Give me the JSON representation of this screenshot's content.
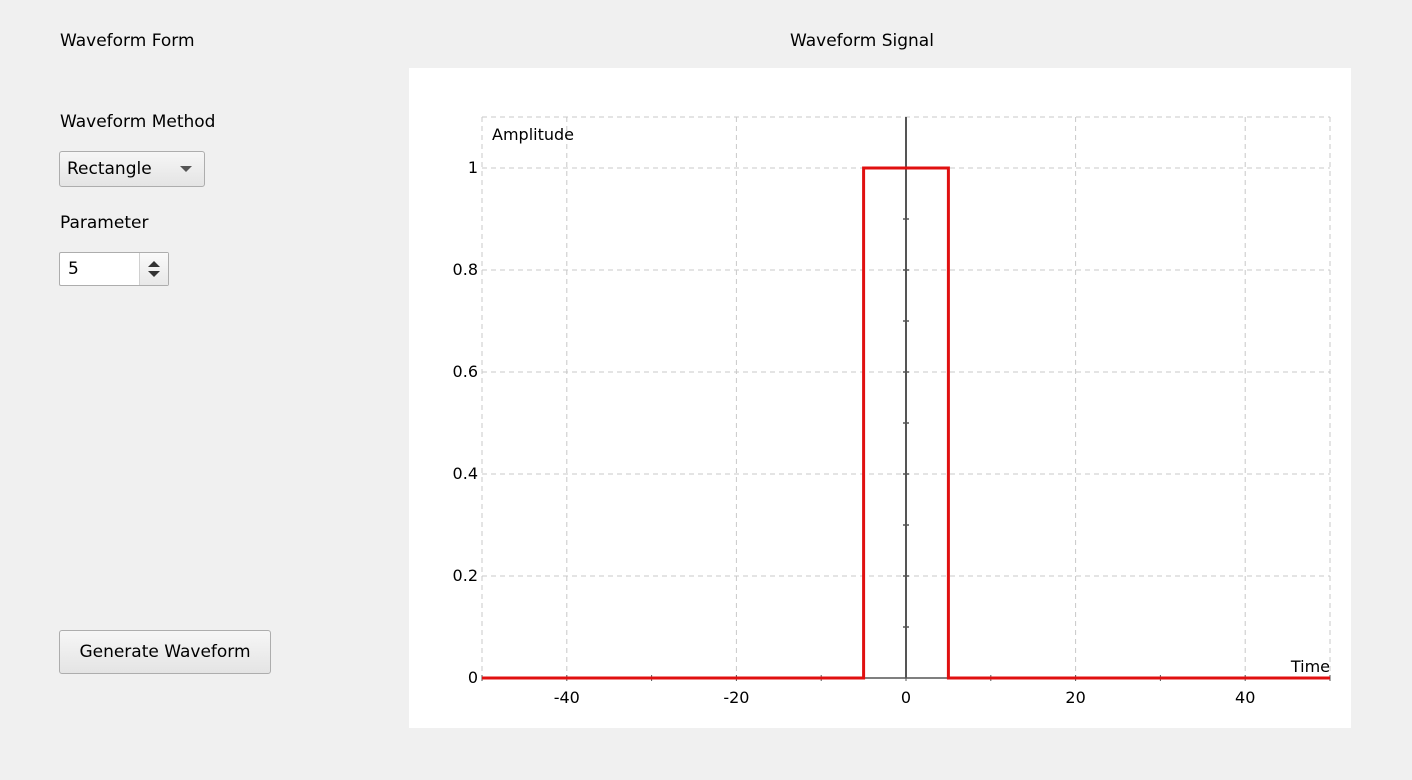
{
  "form": {
    "title": "Waveform Form",
    "method_label": "Waveform Method",
    "method_value": "Rectangle",
    "parameter_label": "Parameter",
    "parameter_value": "5",
    "generate_label": "Generate Waveform"
  },
  "chart_title": "Waveform Signal",
  "colors": {
    "series": "#e01010",
    "grid": "#c8c8c8",
    "axis": "#555555",
    "panel": "#ffffff",
    "background": "#f0f0f0"
  },
  "chart_data": {
    "type": "line",
    "title": "Waveform Signal",
    "xlabel": "Time",
    "ylabel": "Amplitude",
    "xlim": [
      -50,
      50
    ],
    "ylim": [
      0,
      1.1
    ],
    "x_ticks": [
      -40,
      -20,
      0,
      20,
      40
    ],
    "y_ticks": [
      0,
      0.2,
      0.4,
      0.6,
      0.8,
      1
    ],
    "grid": true,
    "series": [
      {
        "x": [
          -50,
          -5,
          -5,
          5,
          5,
          50
        ],
        "y": [
          0,
          0,
          1,
          1,
          0,
          0
        ]
      }
    ]
  }
}
